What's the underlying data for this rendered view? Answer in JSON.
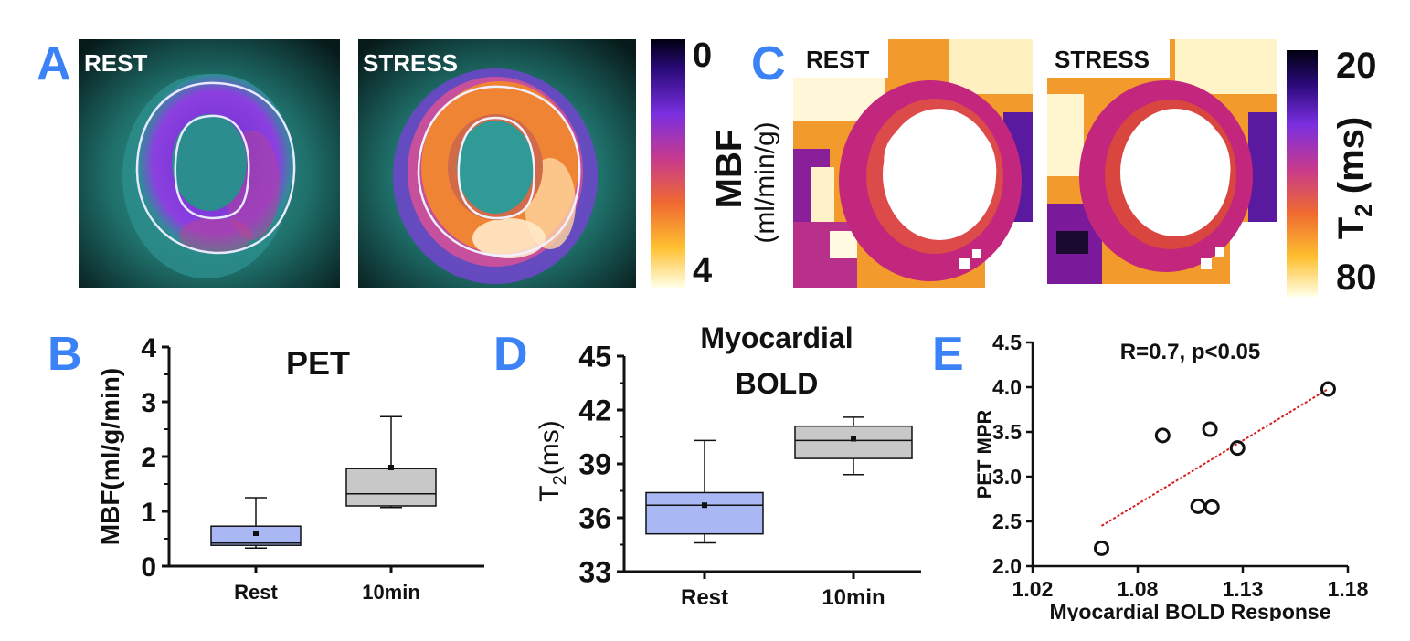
{
  "panels": {
    "a": "A",
    "b": "B",
    "c": "C",
    "d": "D",
    "e": "E"
  },
  "panel_a": {
    "rest_label": "REST",
    "stress_label": "STRESS",
    "colorbar": {
      "top": "0",
      "bottom": "4",
      "title": "MBF",
      "units": "(ml/min/g)"
    }
  },
  "panel_c": {
    "rest_label": "REST",
    "stress_label": "STRESS",
    "colorbar": {
      "top": "20",
      "bottom": "80",
      "title": "T",
      "title_sub": "2",
      "title_units": " (ms)"
    }
  },
  "chart_data": [
    {
      "type": "box",
      "panel": "B",
      "title": "PET",
      "ylabel": "MBF(ml/g/min)",
      "categories": [
        "Rest",
        "10min"
      ],
      "ylim": [
        0,
        4
      ],
      "yticks": [
        "0",
        "1",
        "2",
        "3",
        "4"
      ],
      "boxes": [
        {
          "category": "Rest",
          "whisker_low": 0.33,
          "q1": 0.38,
          "median": 0.42,
          "q3": 0.73,
          "whisker_high": 1.25,
          "mean": 0.6,
          "color": "#a9b8f4"
        },
        {
          "category": "10min",
          "whisker_low": 1.07,
          "q1": 1.1,
          "median": 1.32,
          "q3": 1.78,
          "whisker_high": 2.73,
          "mean": 1.8,
          "color": "#c8c8c8"
        }
      ]
    },
    {
      "type": "box",
      "panel": "D",
      "title_line1": "Myocardial",
      "title_line2": "BOLD",
      "ylabel": "T",
      "ylabel_sub": "2",
      "ylabel_units": "(ms)",
      "categories": [
        "Rest",
        "10min"
      ],
      "ylim": [
        33,
        45
      ],
      "yticks": [
        "33",
        "36",
        "39",
        "42",
        "45"
      ],
      "boxes": [
        {
          "category": "Rest",
          "whisker_low": 34.6,
          "q1": 35.1,
          "median": 36.7,
          "q3": 37.4,
          "whisker_high": 40.3,
          "mean": 36.7,
          "color": "#a9b8f4"
        },
        {
          "category": "10min",
          "whisker_low": 38.4,
          "q1": 39.3,
          "median": 40.3,
          "q3": 41.1,
          "whisker_high": 41.6,
          "mean": 40.4,
          "color": "#c8c8c8"
        }
      ]
    },
    {
      "type": "scatter",
      "panel": "E",
      "annotation": "R=0.7, p<0.05",
      "xlabel": "Myocardial BOLD Response",
      "ylabel": "PET MPR",
      "xlim": [
        1.02,
        1.18
      ],
      "ylim": [
        2.0,
        4.5
      ],
      "xticks": [
        "1.02",
        "1.08",
        "1.13",
        "1.18"
      ],
      "yticks": [
        "2.0",
        "2.5",
        "3.0",
        "3.5",
        "4.0",
        "4.5"
      ],
      "points": [
        {
          "x": 1.055,
          "y": 2.2
        },
        {
          "x": 1.086,
          "y": 3.46
        },
        {
          "x": 1.104,
          "y": 2.67
        },
        {
          "x": 1.111,
          "y": 2.66
        },
        {
          "x": 1.11,
          "y": 3.53
        },
        {
          "x": 1.124,
          "y": 3.32
        },
        {
          "x": 1.17,
          "y": 3.98
        }
      ],
      "fit": {
        "x": [
          1.055,
          1.17
        ],
        "y": [
          2.45,
          3.98
        ],
        "color": "#d62020"
      }
    }
  ]
}
